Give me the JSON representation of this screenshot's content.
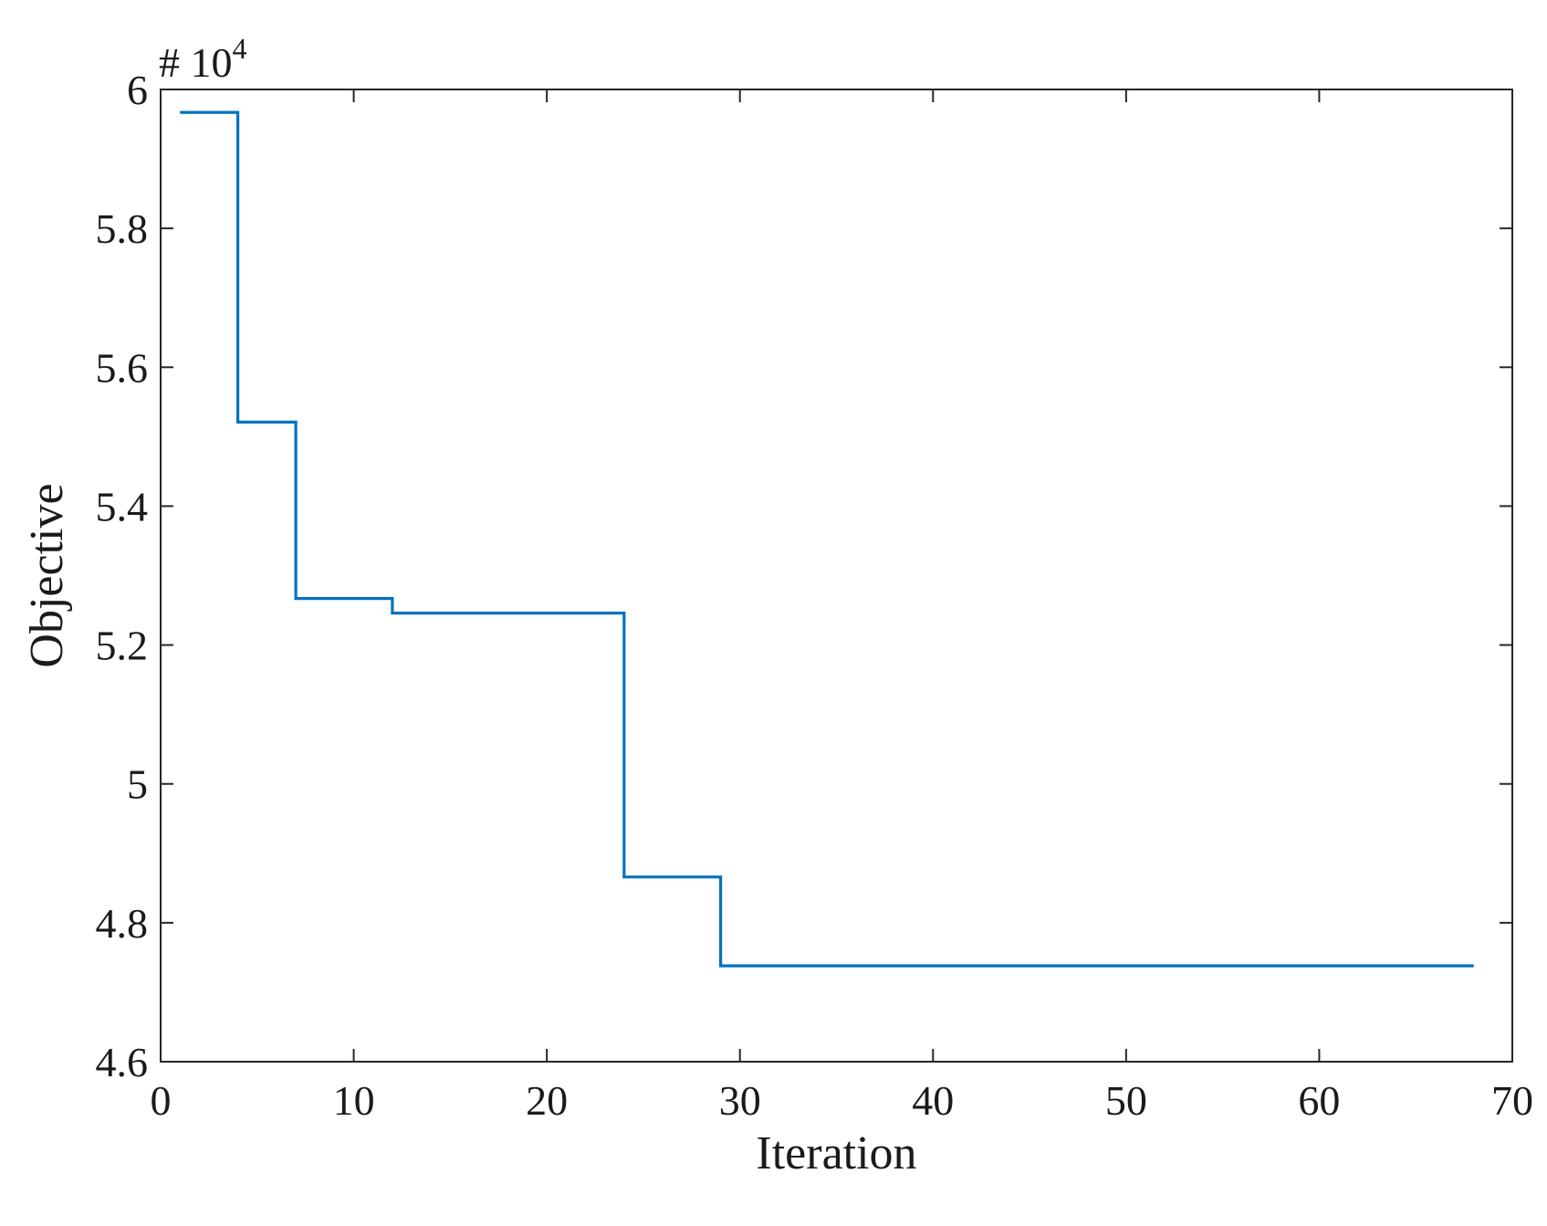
{
  "chart_data": {
    "type": "line",
    "line_style": "step",
    "title": "",
    "xlabel": "Iteration",
    "ylabel": "Objective",
    "y_multiplier_label": "# 10",
    "y_multiplier_exponent": "4",
    "xlim": [
      0,
      70
    ],
    "ylim": [
      4.6,
      6
    ],
    "x_ticks": [
      "0",
      "10",
      "20",
      "30",
      "40",
      "50",
      "60",
      "70"
    ],
    "y_ticks": [
      "4.6",
      "4.8",
      "5",
      "5.2",
      "5.4",
      "5.6",
      "5.8",
      "6"
    ],
    "grid": false,
    "box": true,
    "series": [
      {
        "color": "#0072bd",
        "x": [
          1,
          4,
          4,
          7,
          7,
          12,
          12,
          24,
          24,
          29,
          29,
          68
        ],
        "y": [
          5.967,
          5.967,
          5.521,
          5.521,
          5.267,
          5.267,
          5.246,
          5.246,
          4.866,
          4.866,
          4.738,
          4.738
        ]
      }
    ]
  }
}
